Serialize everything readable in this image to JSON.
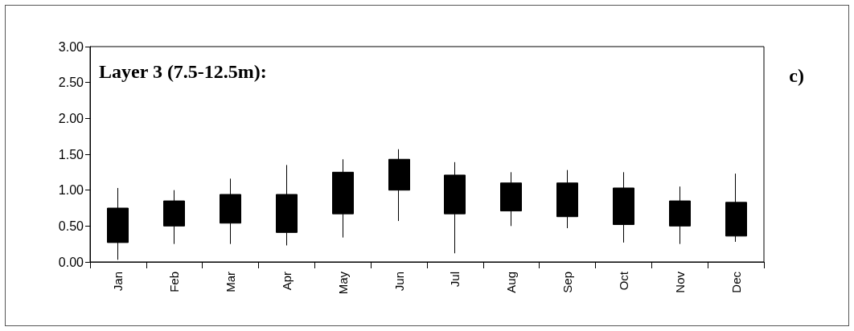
{
  "chart_data": {
    "type": "candlestick",
    "title": "Layer 3 (7.5-12.5m):",
    "annotations": [
      "c)"
    ],
    "categories": [
      "Jan",
      "Feb",
      "Mar",
      "Apr",
      "May",
      "Jun",
      "Jul",
      "Aug",
      "Sep",
      "Oct",
      "Nov",
      "Dec"
    ],
    "ohlc": [
      [
        0.75,
        1.03,
        0.03,
        0.27
      ],
      [
        0.85,
        1.0,
        0.25,
        0.5
      ],
      [
        0.94,
        1.16,
        0.25,
        0.54
      ],
      [
        0.94,
        1.35,
        0.23,
        0.41
      ],
      [
        1.25,
        1.43,
        0.34,
        0.67
      ],
      [
        1.43,
        1.57,
        0.57,
        1.0
      ],
      [
        1.21,
        1.39,
        0.12,
        0.67
      ],
      [
        1.1,
        1.25,
        0.5,
        0.71
      ],
      [
        1.1,
        1.28,
        0.47,
        0.63
      ],
      [
        1.03,
        1.25,
        0.27,
        0.52
      ],
      [
        0.85,
        1.05,
        0.25,
        0.5
      ],
      [
        0.83,
        1.23,
        0.28,
        0.36
      ]
    ],
    "color": "#000000",
    "ylim": [
      0,
      3
    ],
    "yticks": [
      {
        "value": 0,
        "label": "0.00"
      },
      {
        "value": 0.5,
        "label": "0.50"
      },
      {
        "value": 1,
        "label": "1.00"
      },
      {
        "value": 1.5,
        "label": "1.50"
      },
      {
        "value": 2,
        "label": "2.00"
      },
      {
        "value": 2.5,
        "label": "2.50"
      },
      {
        "value": 3,
        "label": "3.00"
      }
    ],
    "grid": false
  }
}
